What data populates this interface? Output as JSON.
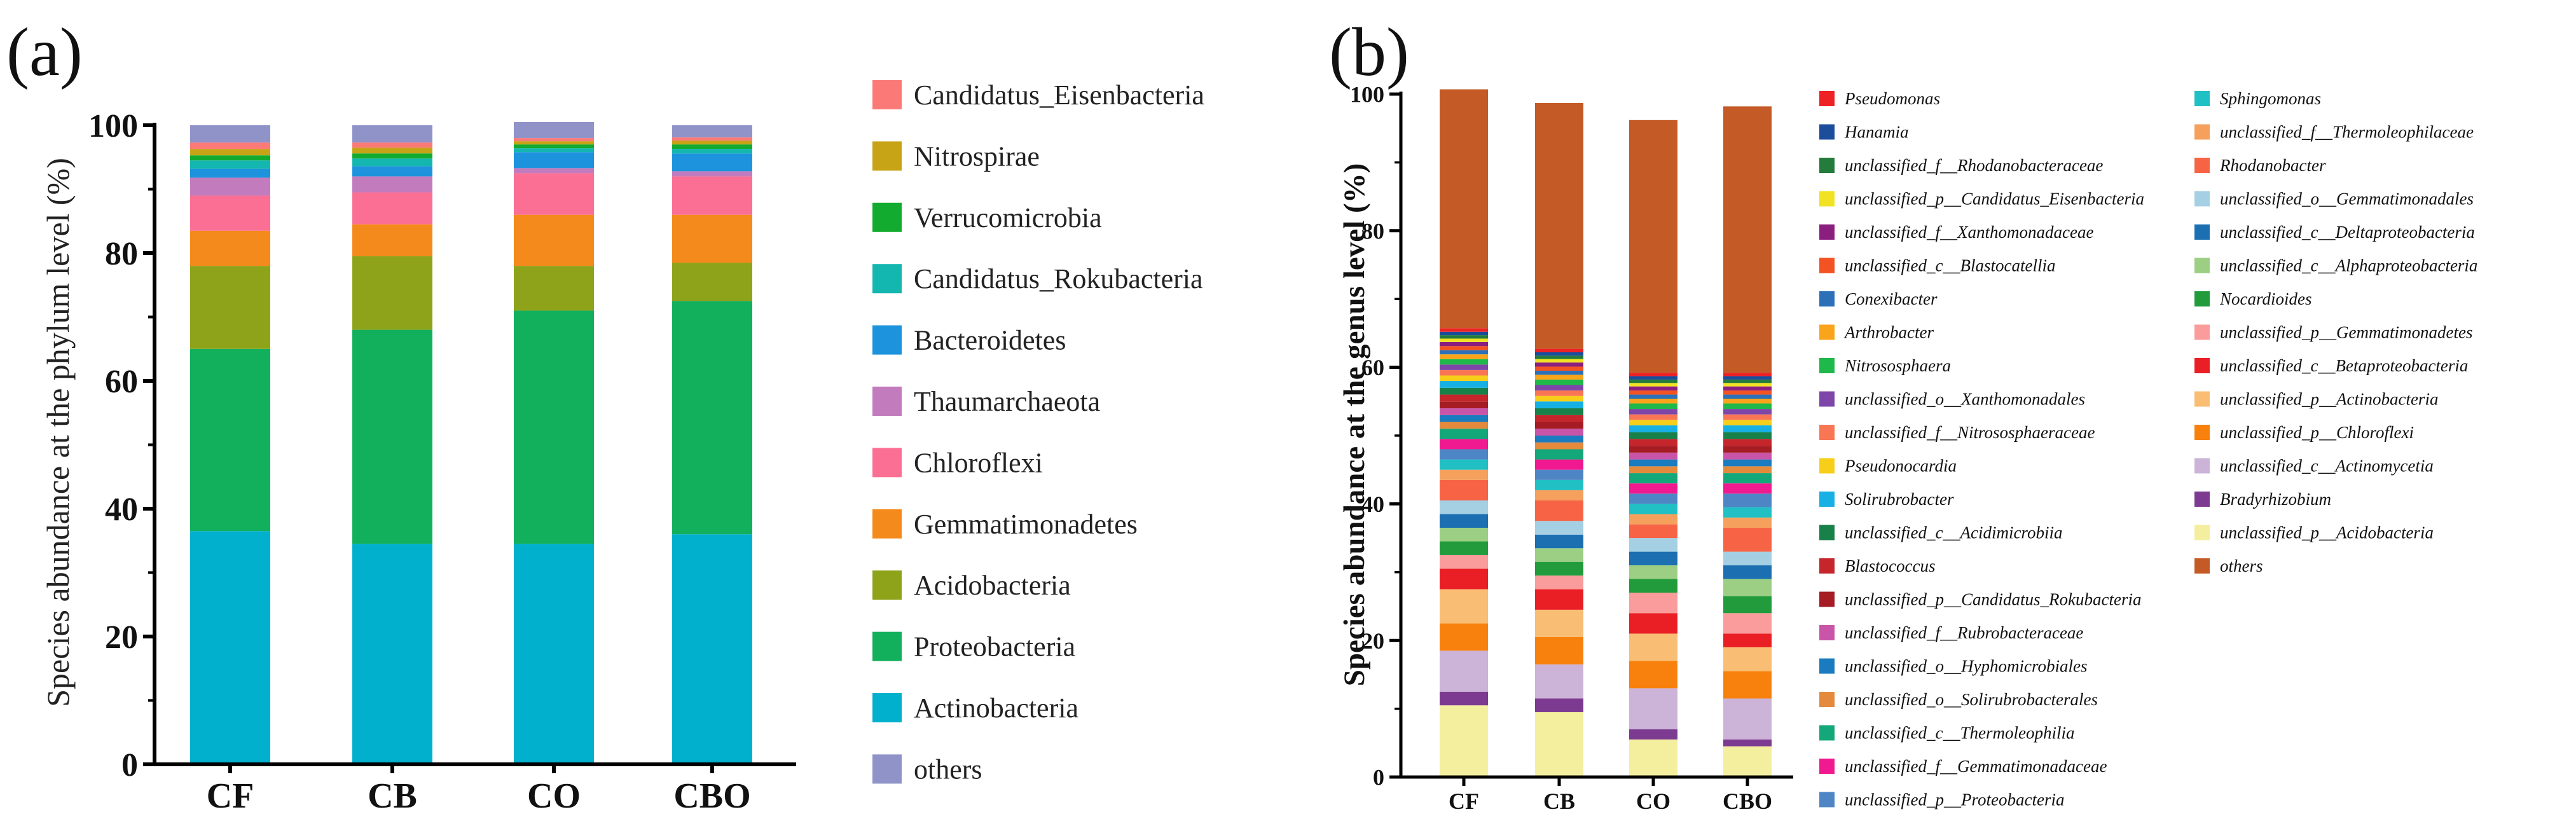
{
  "panel_a": {
    "letter": "(a)",
    "chart_data": {
      "type": "stacked-bar",
      "ylabel": "Species abundance at the phylum level (%)",
      "ylim": [
        0,
        100
      ],
      "yticks": [
        "0",
        "20",
        "40",
        "60",
        "80",
        "100"
      ],
      "categories": [
        "CF",
        "CB",
        "CO",
        "CBO"
      ],
      "series": [
        {
          "name": "Actinobacteria",
          "color": "#00b0cd",
          "values": [
            36.5,
            34.5,
            34.5,
            36.0
          ]
        },
        {
          "name": "Proteobacteria",
          "color": "#12b05c",
          "values": [
            28.5,
            33.5,
            36.5,
            36.5
          ]
        },
        {
          "name": "Acidobacteria",
          "color": "#8fa31a",
          "values": [
            13.0,
            11.5,
            7.0,
            6.0
          ]
        },
        {
          "name": "Gemmatimonadetes",
          "color": "#f48a1b",
          "values": [
            5.5,
            5.0,
            8.0,
            7.5
          ]
        },
        {
          "name": "Chloroflexi",
          "color": "#fa6f93",
          "values": [
            5.5,
            5.0,
            6.5,
            6.0
          ]
        },
        {
          "name": "Thaumarchaeota",
          "color": "#c27bbd",
          "values": [
            2.8,
            2.5,
            0.8,
            0.8
          ]
        },
        {
          "name": "Bacteroidetes",
          "color": "#1c93dc",
          "values": [
            1.4,
            1.6,
            2.5,
            2.8
          ]
        },
        {
          "name": "Candidatus_Rokubacteria",
          "color": "#14b7b0",
          "values": [
            1.3,
            1.2,
            0.6,
            0.7
          ]
        },
        {
          "name": "Verrucomicrobia",
          "color": "#13ab2f",
          "values": [
            0.8,
            0.8,
            0.6,
            0.7
          ]
        },
        {
          "name": "Nitrospirae",
          "color": "#c7a316",
          "values": [
            1.0,
            0.9,
            0.5,
            0.6
          ]
        },
        {
          "name": "Candidatus_Eisenbacteria",
          "color": "#fb7a78",
          "values": [
            1.0,
            0.8,
            0.5,
            0.5
          ]
        },
        {
          "name": "others",
          "color": "#8f93c8",
          "values": [
            2.7,
            2.7,
            2.5,
            1.9
          ]
        }
      ],
      "legend_order": [
        "Candidatus_Eisenbacteria",
        "Nitrospirae",
        "Verrucomicrobia",
        "Candidatus_Rokubacteria",
        "Bacteroidetes",
        "Thaumarchaeota",
        "Chloroflexi",
        "Gemmatimonadetes",
        "Acidobacteria",
        "Proteobacteria",
        "Actinobacteria",
        "others"
      ],
      "legend_labels": [
        "Candidatus_Eisenbacteria",
        "Nitrospirae",
        "Verrucomicrobia",
        "Candidatus_Rokubacteria",
        "Bacteroidetes",
        "Thaumarchaeota",
        "Chloroflexi",
        "Gemmatimonadetes",
        "Acidobacteria",
        "Proteobacteria",
        "Actinobacteria",
        " others"
      ]
    }
  },
  "panel_b": {
    "letter": "(b)",
    "chart_data": {
      "type": "stacked-bar",
      "ylabel": "Species abundance at the genus level (%)",
      "ylim": [
        0,
        100
      ],
      "yticks": [
        "0",
        "20",
        "40",
        "60",
        "80",
        "100"
      ],
      "categories": [
        "CF",
        "CB",
        "CO",
        "CBO"
      ],
      "series": [
        {
          "name": "unclassified_p__Acidobacteria",
          "color": "#f4ef9f",
          "values": [
            10.5,
            9.5,
            5.5,
            4.5
          ]
        },
        {
          "name": "Bradyrhizobium",
          "color": "#7c3b91",
          "values": [
            2.0,
            2.0,
            1.5,
            1.0
          ]
        },
        {
          "name": "unclassified_c__Actinomycetia",
          "color": "#ccb3d8",
          "values": [
            6.0,
            5.0,
            6.0,
            6.0
          ]
        },
        {
          "name": "unclassified_p__Chloroflexi",
          "color": "#f8810d",
          "values": [
            4.0,
            4.0,
            4.0,
            4.0
          ]
        },
        {
          "name": "unclassified_p__Actinobacteria",
          "color": "#f9bd73",
          "values": [
            5.0,
            4.0,
            4.0,
            3.5
          ]
        },
        {
          "name": "unclassified_c__Betaproteobacteria",
          "color": "#ea1f26",
          "values": [
            3.0,
            3.0,
            3.0,
            2.0
          ]
        },
        {
          "name": "unclassified_p__Gemmatimonadetes",
          "color": "#f99c9b",
          "values": [
            2.0,
            2.0,
            3.0,
            3.0
          ]
        },
        {
          "name": "Nocardioides",
          "color": "#229b3c",
          "values": [
            2.0,
            2.0,
            2.0,
            2.5
          ]
        },
        {
          "name": "unclassified_c__Alphaproteobacteria",
          "color": "#9ccf83",
          "values": [
            2.0,
            2.0,
            2.0,
            2.5
          ]
        },
        {
          "name": "unclassified_c__Deltaproteobacteria",
          "color": "#1c70b1",
          "values": [
            2.0,
            2.0,
            2.0,
            2.0
          ]
        },
        {
          "name": "unclassified_o__Gemmatimonadales",
          "color": "#a5cfe3",
          "values": [
            2.0,
            2.0,
            2.0,
            2.0
          ]
        },
        {
          "name": "Rhodanobacter",
          "color": "#f76445",
          "values": [
            3.0,
            3.0,
            2.0,
            3.5
          ]
        },
        {
          "name": "unclassified_f__Thermoleophilaceae",
          "color": "#f5a15d",
          "values": [
            1.5,
            1.5,
            1.5,
            1.5
          ]
        },
        {
          "name": "Sphingomonas",
          "color": "#20c0c4",
          "values": [
            1.5,
            1.5,
            1.5,
            1.5
          ]
        },
        {
          "name": "unclassified_p__Proteobacteria",
          "color": "#4e86c5",
          "values": [
            1.5,
            1.5,
            1.5,
            2.0
          ]
        },
        {
          "name": "unclassified_f__Gemmatimonadaceae",
          "color": "#f0198f",
          "values": [
            1.5,
            1.5,
            1.5,
            1.5
          ]
        },
        {
          "name": "unclassified_c__Thermoleophilia",
          "color": "#14a77a",
          "values": [
            1.5,
            1.5,
            1.5,
            1.5
          ]
        },
        {
          "name": "unclassified_o__Solirubrobacterales",
          "color": "#e48a3c",
          "values": [
            1.0,
            1.0,
            1.0,
            1.0
          ]
        },
        {
          "name": "unclassified_o__Hyphomicrobiales",
          "color": "#1a7bbf",
          "values": [
            1.0,
            1.0,
            1.0,
            1.0
          ]
        },
        {
          "name": "unclassified_f__Rubrobacteraceae",
          "color": "#c955a9",
          "values": [
            1.0,
            1.0,
            1.0,
            1.0
          ]
        },
        {
          "name": "unclassified_p__Candidatus_Rokubacteria",
          "color": "#a51c24",
          "values": [
            1.0,
            1.0,
            1.0,
            1.0
          ]
        },
        {
          "name": "Blastococcus",
          "color": "#c4262c",
          "values": [
            1.0,
            1.0,
            1.0,
            1.0
          ]
        },
        {
          "name": "unclassified_c__Acidimicrobiia",
          "color": "#188049",
          "values": [
            1.0,
            1.0,
            1.0,
            1.0
          ]
        },
        {
          "name": "Solirubrobacter",
          "color": "#17b0e5",
          "values": [
            1.0,
            1.0,
            1.0,
            1.0
          ]
        },
        {
          "name": "Pseudonocardia",
          "color": "#f7cf1a",
          "values": [
            0.8,
            0.8,
            0.8,
            0.8
          ]
        },
        {
          "name": "unclassified_f__Nitrososphaeraceae",
          "color": "#f97654",
          "values": [
            0.8,
            0.8,
            0.8,
            0.8
          ]
        },
        {
          "name": "unclassified_o__Xanthomonadales",
          "color": "#7e46a8",
          "values": [
            0.8,
            0.8,
            0.8,
            0.8
          ]
        },
        {
          "name": "Nitrososphaera",
          "color": "#1fb84a",
          "values": [
            0.8,
            0.8,
            0.8,
            0.8
          ]
        },
        {
          "name": "Arthrobacter",
          "color": "#f9a41a",
          "values": [
            0.7,
            0.7,
            0.7,
            0.7
          ]
        },
        {
          "name": "Conexibacter",
          "color": "#2c71b8",
          "values": [
            0.6,
            0.6,
            0.6,
            0.6
          ]
        },
        {
          "name": "unclassified_c__Blastocatellia",
          "color": "#f35222",
          "values": [
            0.6,
            0.6,
            0.6,
            0.6
          ]
        },
        {
          "name": "unclassified_f__Xanthomonadaceae",
          "color": "#8b1f7f",
          "values": [
            0.6,
            0.6,
            0.6,
            0.6
          ]
        },
        {
          "name": "unclassified_p__Candidatus_Eisenbacteria",
          "color": "#f2e224",
          "values": [
            0.5,
            0.5,
            0.5,
            0.5
          ]
        },
        {
          "name": "unclassified_f__Rhodanobacteraceae",
          "color": "#237b3c",
          "values": [
            0.5,
            0.5,
            0.5,
            0.5
          ]
        },
        {
          "name": "Hanamia",
          "color": "#1b4d9a",
          "values": [
            0.5,
            0.5,
            0.5,
            0.5
          ]
        },
        {
          "name": "Pseudomonas",
          "color": "#ee2125",
          "values": [
            0.5,
            0.5,
            0.5,
            0.5
          ]
        },
        {
          "name": "others",
          "color": "#c45a25",
          "values": [
            35.0,
            36.0,
            37.0,
            39.0
          ]
        }
      ],
      "legend_left": [
        {
          "label": "Pseudomonas",
          "color": "#ee2125"
        },
        {
          "label": "Hanamia",
          "color": "#1b4d9a"
        },
        {
          "label": "unclassified_f__Rhodanobacteraceae",
          "color": "#237b3c"
        },
        {
          "label": "unclassified_p__Candidatus_Eisenbacteria",
          "color": "#f2e224"
        },
        {
          "label": "unclassified_f__Xanthomonadaceae",
          "color": "#8b1f7f"
        },
        {
          "label": "unclassified_c__Blastocatellia",
          "color": "#f35222"
        },
        {
          "label": "Conexibacter",
          "color": "#2c71b8"
        },
        {
          "label": "Arthrobacter",
          "color": "#f9a41a"
        },
        {
          "label": "Nitrososphaera",
          "color": "#1fb84a"
        },
        {
          "label": "unclassified_o__Xanthomonadales",
          "color": "#7e46a8"
        },
        {
          "label": "unclassified_f__Nitrososphaeraceae",
          "color": "#f97654"
        },
        {
          "label": "Pseudonocardia",
          "color": "#f7cf1a"
        },
        {
          "label": "Solirubrobacter",
          "color": "#17b0e5"
        },
        {
          "label": "unclassified_c__Acidimicrobiia",
          "color": "#188049"
        },
        {
          "label": "Blastococcus",
          "color": "#c4262c"
        },
        {
          "label": "unclassified_p__Candidatus_Rokubacteria",
          "color": "#a51c24"
        },
        {
          "label": "unclassified_f__Rubrobacteraceae",
          "color": "#c955a9"
        },
        {
          "label": "unclassified_o__Hyphomicrobiales",
          "color": "#1a7bbf"
        },
        {
          "label": "unclassified_o__Solirubrobacterales",
          "color": "#e48a3c"
        },
        {
          "label": "unclassified_c__Thermoleophilia",
          "color": "#14a77a"
        },
        {
          "label": "unclassified_f__Gemmatimonadaceae",
          "color": "#f0198f"
        },
        {
          "label": "unclassified_p__Proteobacteria",
          "color": "#4e86c5"
        }
      ],
      "legend_right": [
        {
          "label": "Sphingomonas",
          "color": "#20c0c4"
        },
        {
          "label": "unclassified_f__Thermoleophilaceae",
          "color": "#f5a15d"
        },
        {
          "label": "Rhodanobacter",
          "color": "#f76445"
        },
        {
          "label": "unclassified_o__Gemmatimonadales",
          "color": "#a5cfe3"
        },
        {
          "label": "unclassified_c__Deltaproteobacteria",
          "color": "#1c70b1"
        },
        {
          "label": "unclassified_c__Alphaproteobacteria",
          "color": "#9ccf83"
        },
        {
          "label": "Nocardioides",
          "color": "#229b3c"
        },
        {
          "label": "unclassified_p__Gemmatimonadetes",
          "color": "#f99c9b"
        },
        {
          "label": "unclassified_c__Betaproteobacteria",
          "color": "#ea1f26"
        },
        {
          "label": "unclassified_p__Actinobacteria",
          "color": "#f9bd73"
        },
        {
          "label": "unclassified_p__Chloroflexi",
          "color": "#f8810d"
        },
        {
          "label": "unclassified_c__Actinomycetia",
          "color": "#ccb3d8"
        },
        {
          "label": "Bradyrhizobium",
          "color": "#7c3b91"
        },
        {
          "label": "unclassified_p__Acidobacteria",
          "color": "#f4ef9f"
        },
        {
          "label": "others",
          "color": "#c45a25"
        }
      ]
    }
  }
}
